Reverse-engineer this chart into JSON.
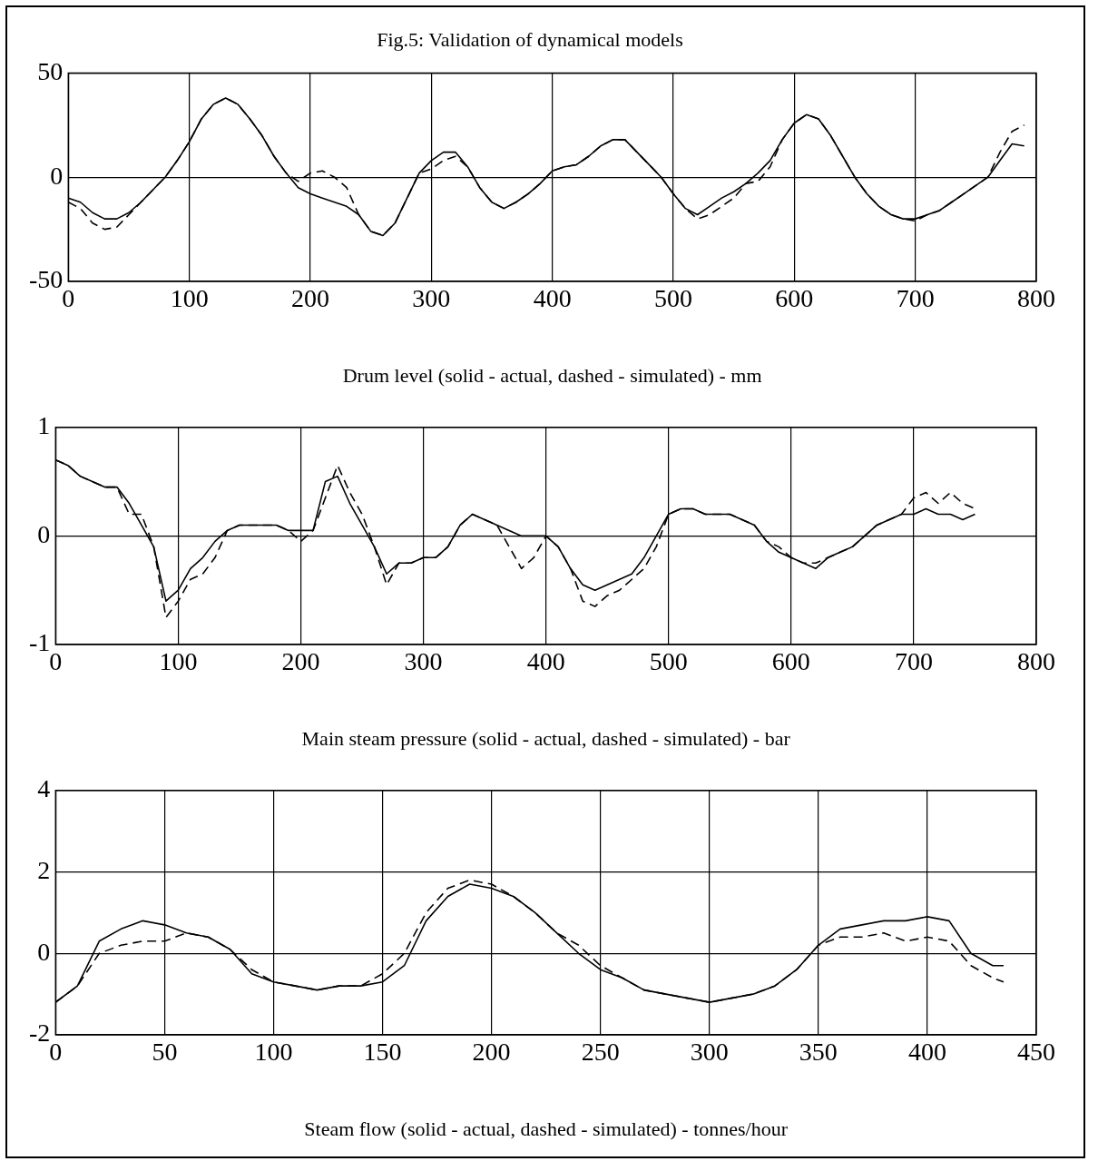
{
  "chart_data": [
    {
      "type": "line",
      "title": "Fig.5: Validation of dynamical models",
      "xlabel": "Drum level (solid - actual, dashed - simulated) - mm",
      "xlim": [
        0,
        800
      ],
      "xticks": [
        0,
        100,
        200,
        300,
        400,
        500,
        600,
        700,
        800
      ],
      "ylim": [
        -50,
        50
      ],
      "yticks": [
        -50,
        0,
        50
      ],
      "grid": true,
      "marker": "none",
      "x": [
        0,
        10,
        20,
        30,
        40,
        50,
        60,
        70,
        80,
        90,
        100,
        110,
        120,
        130,
        140,
        150,
        160,
        170,
        180,
        190,
        200,
        210,
        220,
        230,
        240,
        250,
        260,
        270,
        280,
        290,
        300,
        310,
        320,
        330,
        340,
        350,
        360,
        370,
        380,
        390,
        400,
        410,
        420,
        430,
        440,
        450,
        460,
        470,
        480,
        490,
        500,
        510,
        520,
        530,
        540,
        550,
        560,
        570,
        580,
        590,
        600,
        610,
        620,
        630,
        640,
        650,
        660,
        670,
        680,
        690,
        700,
        710,
        720,
        730,
        740,
        750,
        760,
        770,
        780,
        790
      ],
      "series": [
        {
          "color": "#000000",
          "line_style": "solid",
          "values": [
            -10,
            -12,
            -17,
            -20,
            -20,
            -17,
            -12,
            -6,
            0,
            8,
            17,
            28,
            35,
            38,
            35,
            28,
            20,
            10,
            2,
            -5,
            -8,
            -10,
            -12,
            -14,
            -18,
            -26,
            -28,
            -22,
            -10,
            2,
            8,
            12,
            12,
            5,
            -5,
            -12,
            -15,
            -12,
            -8,
            -3,
            3,
            5,
            6,
            10,
            15,
            18,
            18,
            12,
            6,
            0,
            -8,
            -15,
            -18,
            -14,
            -10,
            -7,
            -3,
            2,
            8,
            18,
            26,
            30,
            28,
            20,
            10,
            0,
            -8,
            -14,
            -18,
            -20,
            -20,
            -18,
            -16,
            -12,
            -8,
            -4,
            0,
            8,
            16,
            15
          ]
        },
        {
          "color": "#000000",
          "line_style": "dashed",
          "values": [
            -12,
            -15,
            -22,
            -25,
            -24,
            -18,
            -12,
            -6,
            0,
            8,
            17,
            28,
            35,
            38,
            35,
            28,
            20,
            10,
            2,
            -2,
            2,
            3,
            0,
            -5,
            -18,
            -26,
            -28,
            -22,
            -10,
            2,
            4,
            8,
            10,
            5,
            -5,
            -12,
            -15,
            -12,
            -8,
            -3,
            3,
            5,
            6,
            10,
            15,
            18,
            18,
            12,
            6,
            0,
            -8,
            -15,
            -20,
            -18,
            -14,
            -10,
            -3,
            -2,
            5,
            18,
            26,
            30,
            28,
            20,
            10,
            0,
            -8,
            -14,
            -18,
            -20,
            -21,
            -18,
            -16,
            -12,
            -8,
            -4,
            0,
            12,
            22,
            25
          ]
        }
      ]
    },
    {
      "type": "line",
      "xlabel": "Main steam pressure (solid - actual, dashed - simulated) - bar",
      "xlim": [
        0,
        800
      ],
      "xticks": [
        0,
        100,
        200,
        300,
        400,
        500,
        600,
        700,
        800
      ],
      "ylim": [
        -1,
        1
      ],
      "yticks": [
        -1,
        0,
        1
      ],
      "grid": true,
      "marker": "none",
      "x": [
        0,
        10,
        20,
        30,
        40,
        50,
        60,
        70,
        80,
        90,
        100,
        110,
        120,
        130,
        140,
        150,
        160,
        170,
        180,
        190,
        200,
        210,
        220,
        230,
        240,
        250,
        260,
        270,
        280,
        290,
        300,
        310,
        320,
        330,
        340,
        350,
        360,
        370,
        380,
        390,
        400,
        410,
        420,
        430,
        440,
        450,
        460,
        470,
        480,
        490,
        500,
        510,
        520,
        530,
        540,
        550,
        560,
        570,
        580,
        590,
        600,
        610,
        620,
        630,
        640,
        650,
        660,
        670,
        680,
        690,
        700,
        710,
        720,
        730,
        740,
        750
      ],
      "series": [
        {
          "color": "#000000",
          "line_style": "solid",
          "values": [
            0.7,
            0.65,
            0.55,
            0.5,
            0.45,
            0.45,
            0.3,
            0.1,
            -0.1,
            -0.6,
            -0.5,
            -0.3,
            -0.2,
            -0.05,
            0.05,
            0.1,
            0.1,
            0.1,
            0.1,
            0.05,
            0.05,
            0.05,
            0.5,
            0.55,
            0.3,
            0.1,
            -0.1,
            -0.35,
            -0.25,
            -0.25,
            -0.2,
            -0.2,
            -0.1,
            0.1,
            0.2,
            0.15,
            0.1,
            0.05,
            0.0,
            0.0,
            0.0,
            -0.1,
            -0.3,
            -0.45,
            -0.5,
            -0.45,
            -0.4,
            -0.35,
            -0.2,
            0.0,
            0.2,
            0.25,
            0.25,
            0.2,
            0.2,
            0.2,
            0.15,
            0.1,
            -0.05,
            -0.15,
            -0.2,
            -0.25,
            -0.3,
            -0.2,
            -0.15,
            -0.1,
            0.0,
            0.1,
            0.15,
            0.2,
            0.2,
            0.25,
            0.2,
            0.2,
            0.15,
            0.2
          ]
        },
        {
          "color": "#000000",
          "line_style": "dashed",
          "values": [
            0.7,
            0.65,
            0.55,
            0.5,
            0.45,
            0.45,
            0.2,
            0.2,
            -0.1,
            -0.75,
            -0.6,
            -0.4,
            -0.35,
            -0.2,
            0.05,
            0.1,
            0.1,
            0.1,
            0.1,
            0.05,
            -0.05,
            0.05,
            0.35,
            0.65,
            0.4,
            0.2,
            -0.1,
            -0.45,
            -0.25,
            -0.25,
            -0.2,
            -0.2,
            -0.1,
            0.1,
            0.2,
            0.15,
            0.1,
            -0.1,
            -0.3,
            -0.2,
            0.0,
            -0.1,
            -0.3,
            -0.6,
            -0.65,
            -0.55,
            -0.5,
            -0.4,
            -0.3,
            -0.1,
            0.2,
            0.25,
            0.25,
            0.2,
            0.2,
            0.2,
            0.15,
            0.1,
            -0.05,
            -0.1,
            -0.2,
            -0.25,
            -0.25,
            -0.2,
            -0.15,
            -0.1,
            0.0,
            0.1,
            0.15,
            0.2,
            0.35,
            0.4,
            0.3,
            0.4,
            0.3,
            0.25
          ]
        }
      ]
    },
    {
      "type": "line",
      "xlabel": "Steam flow (solid - actual, dashed - simulated) - tonnes/hour",
      "xlim": [
        0,
        450
      ],
      "xticks": [
        0,
        50,
        100,
        150,
        200,
        250,
        300,
        350,
        400,
        450
      ],
      "ylim": [
        -2,
        4
      ],
      "yticks": [
        -2,
        0,
        2,
        4
      ],
      "grid": true,
      "marker": "none",
      "x": [
        0,
        10,
        20,
        30,
        40,
        50,
        60,
        70,
        80,
        90,
        100,
        110,
        120,
        130,
        140,
        150,
        160,
        170,
        180,
        190,
        200,
        210,
        220,
        230,
        240,
        250,
        260,
        270,
        280,
        290,
        300,
        310,
        320,
        330,
        340,
        350,
        360,
        370,
        380,
        390,
        400,
        410,
        420,
        430,
        435
      ],
      "series": [
        {
          "color": "#000000",
          "line_style": "solid",
          "values": [
            -1.2,
            -0.8,
            0.3,
            0.6,
            0.8,
            0.7,
            0.5,
            0.4,
            0.1,
            -0.5,
            -0.7,
            -0.8,
            -0.9,
            -0.8,
            -0.8,
            -0.7,
            -0.3,
            0.8,
            1.4,
            1.7,
            1.6,
            1.4,
            1.0,
            0.5,
            0.0,
            -0.4,
            -0.6,
            -0.9,
            -1.0,
            -1.1,
            -1.2,
            -1.1,
            -1.0,
            -0.8,
            -0.4,
            0.2,
            0.6,
            0.7,
            0.8,
            0.8,
            0.9,
            0.8,
            0.0,
            -0.3,
            -0.3
          ]
        },
        {
          "color": "#000000",
          "line_style": "dashed",
          "values": [
            -1.2,
            -0.8,
            0.0,
            0.2,
            0.3,
            0.3,
            0.5,
            0.4,
            0.1,
            -0.4,
            -0.7,
            -0.8,
            -0.9,
            -0.8,
            -0.8,
            -0.5,
            0.0,
            1.0,
            1.6,
            1.8,
            1.7,
            1.4,
            1.0,
            0.5,
            0.2,
            -0.3,
            -0.6,
            -0.9,
            -1.0,
            -1.1,
            -1.2,
            -1.1,
            -1.0,
            -0.8,
            -0.4,
            0.2,
            0.4,
            0.4,
            0.5,
            0.3,
            0.4,
            0.3,
            -0.3,
            -0.6,
            -0.7
          ]
        }
      ]
    }
  ]
}
